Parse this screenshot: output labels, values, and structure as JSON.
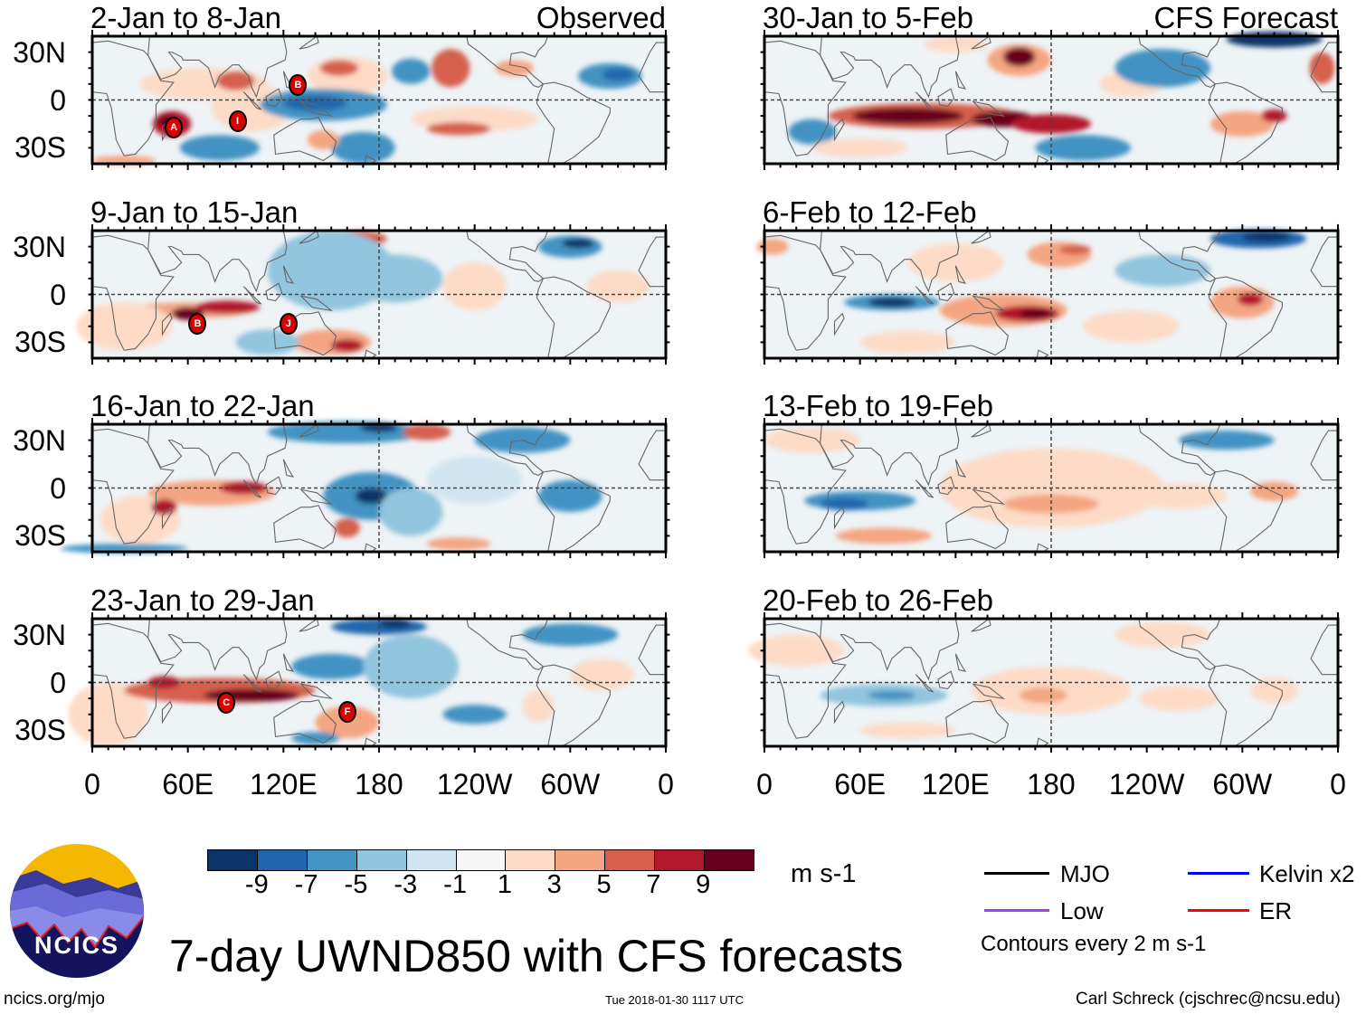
{
  "panels": [
    {
      "title": "2-Jan to 8-Jan",
      "tag": "Observed",
      "storms": [
        "A",
        "I",
        "B"
      ]
    },
    {
      "title": "9-Jan to 15-Jan",
      "tag": "",
      "storms": [
        "B",
        "J"
      ]
    },
    {
      "title": "16-Jan to 22-Jan",
      "tag": "",
      "storms": []
    },
    {
      "title": "23-Jan to 29-Jan",
      "tag": "",
      "storms": [
        "C",
        "F"
      ]
    },
    {
      "title": "30-Jan to 5-Feb",
      "tag": "CFS Forecast",
      "storms": []
    },
    {
      "title": "6-Feb to 12-Feb",
      "tag": "",
      "storms": []
    },
    {
      "title": "13-Feb to 19-Feb",
      "tag": "",
      "storms": []
    },
    {
      "title": "20-Feb to 26-Feb",
      "tag": "",
      "storms": []
    }
  ],
  "lat_labels": [
    "30N",
    "0",
    "30S"
  ],
  "lon_labels": [
    "0",
    "60E",
    "120E",
    "180",
    "120W",
    "60W",
    "0"
  ],
  "colorbar": {
    "colors": [
      "#0b3568",
      "#2166ac",
      "#4393c3",
      "#92c5de",
      "#d1e5f0",
      "#f7f7f7",
      "#fddbc7",
      "#f4a582",
      "#d6604d",
      "#b2182b",
      "#67001f"
    ],
    "labels": [
      "-9",
      "-7",
      "-5",
      "-3",
      "-1",
      "1",
      "3",
      "5",
      "7",
      "9"
    ],
    "units": "m s-1"
  },
  "legend": {
    "items": [
      {
        "label": "MJO",
        "color": "#000000"
      },
      {
        "label": "Kelvin x2",
        "color": "#0000ff"
      },
      {
        "label": "Low",
        "color": "#a040f0"
      },
      {
        "label": "ER",
        "color": "#ff0000"
      }
    ],
    "note": "Contours every 2 m s-1"
  },
  "title": "7-day UWND850 with CFS forecasts",
  "logo_text": "NCICS",
  "footer": {
    "left": "ncics.org/mjo",
    "center": "Tue 2018-01-30 1117 UTC",
    "right": "Carl Schreck (cjschrec@ncsu.edu)"
  },
  "chart_data": {
    "type": "heatmap",
    "title": "7-day UWND850 with CFS forecasts",
    "variable": "850-hPa zonal wind anomaly",
    "units": "m s-1",
    "x_ticks": [
      "0",
      "60E",
      "120E",
      "180",
      "120W",
      "60W",
      "0"
    ],
    "y_ticks": [
      "30N",
      "0",
      "30S"
    ],
    "color_levels": [
      -9,
      -7,
      -5,
      -3,
      -1,
      1,
      3,
      5,
      7,
      9
    ],
    "panels": [
      "2-Jan to 8-Jan (Observed)",
      "9-Jan to 15-Jan",
      "16-Jan to 22-Jan",
      "23-Jan to 29-Jan",
      "30-Jan to 5-Feb (CFS Forecast)",
      "6-Feb to 12-Feb",
      "13-Feb to 19-Feb",
      "20-Feb to 26-Feb"
    ]
  }
}
